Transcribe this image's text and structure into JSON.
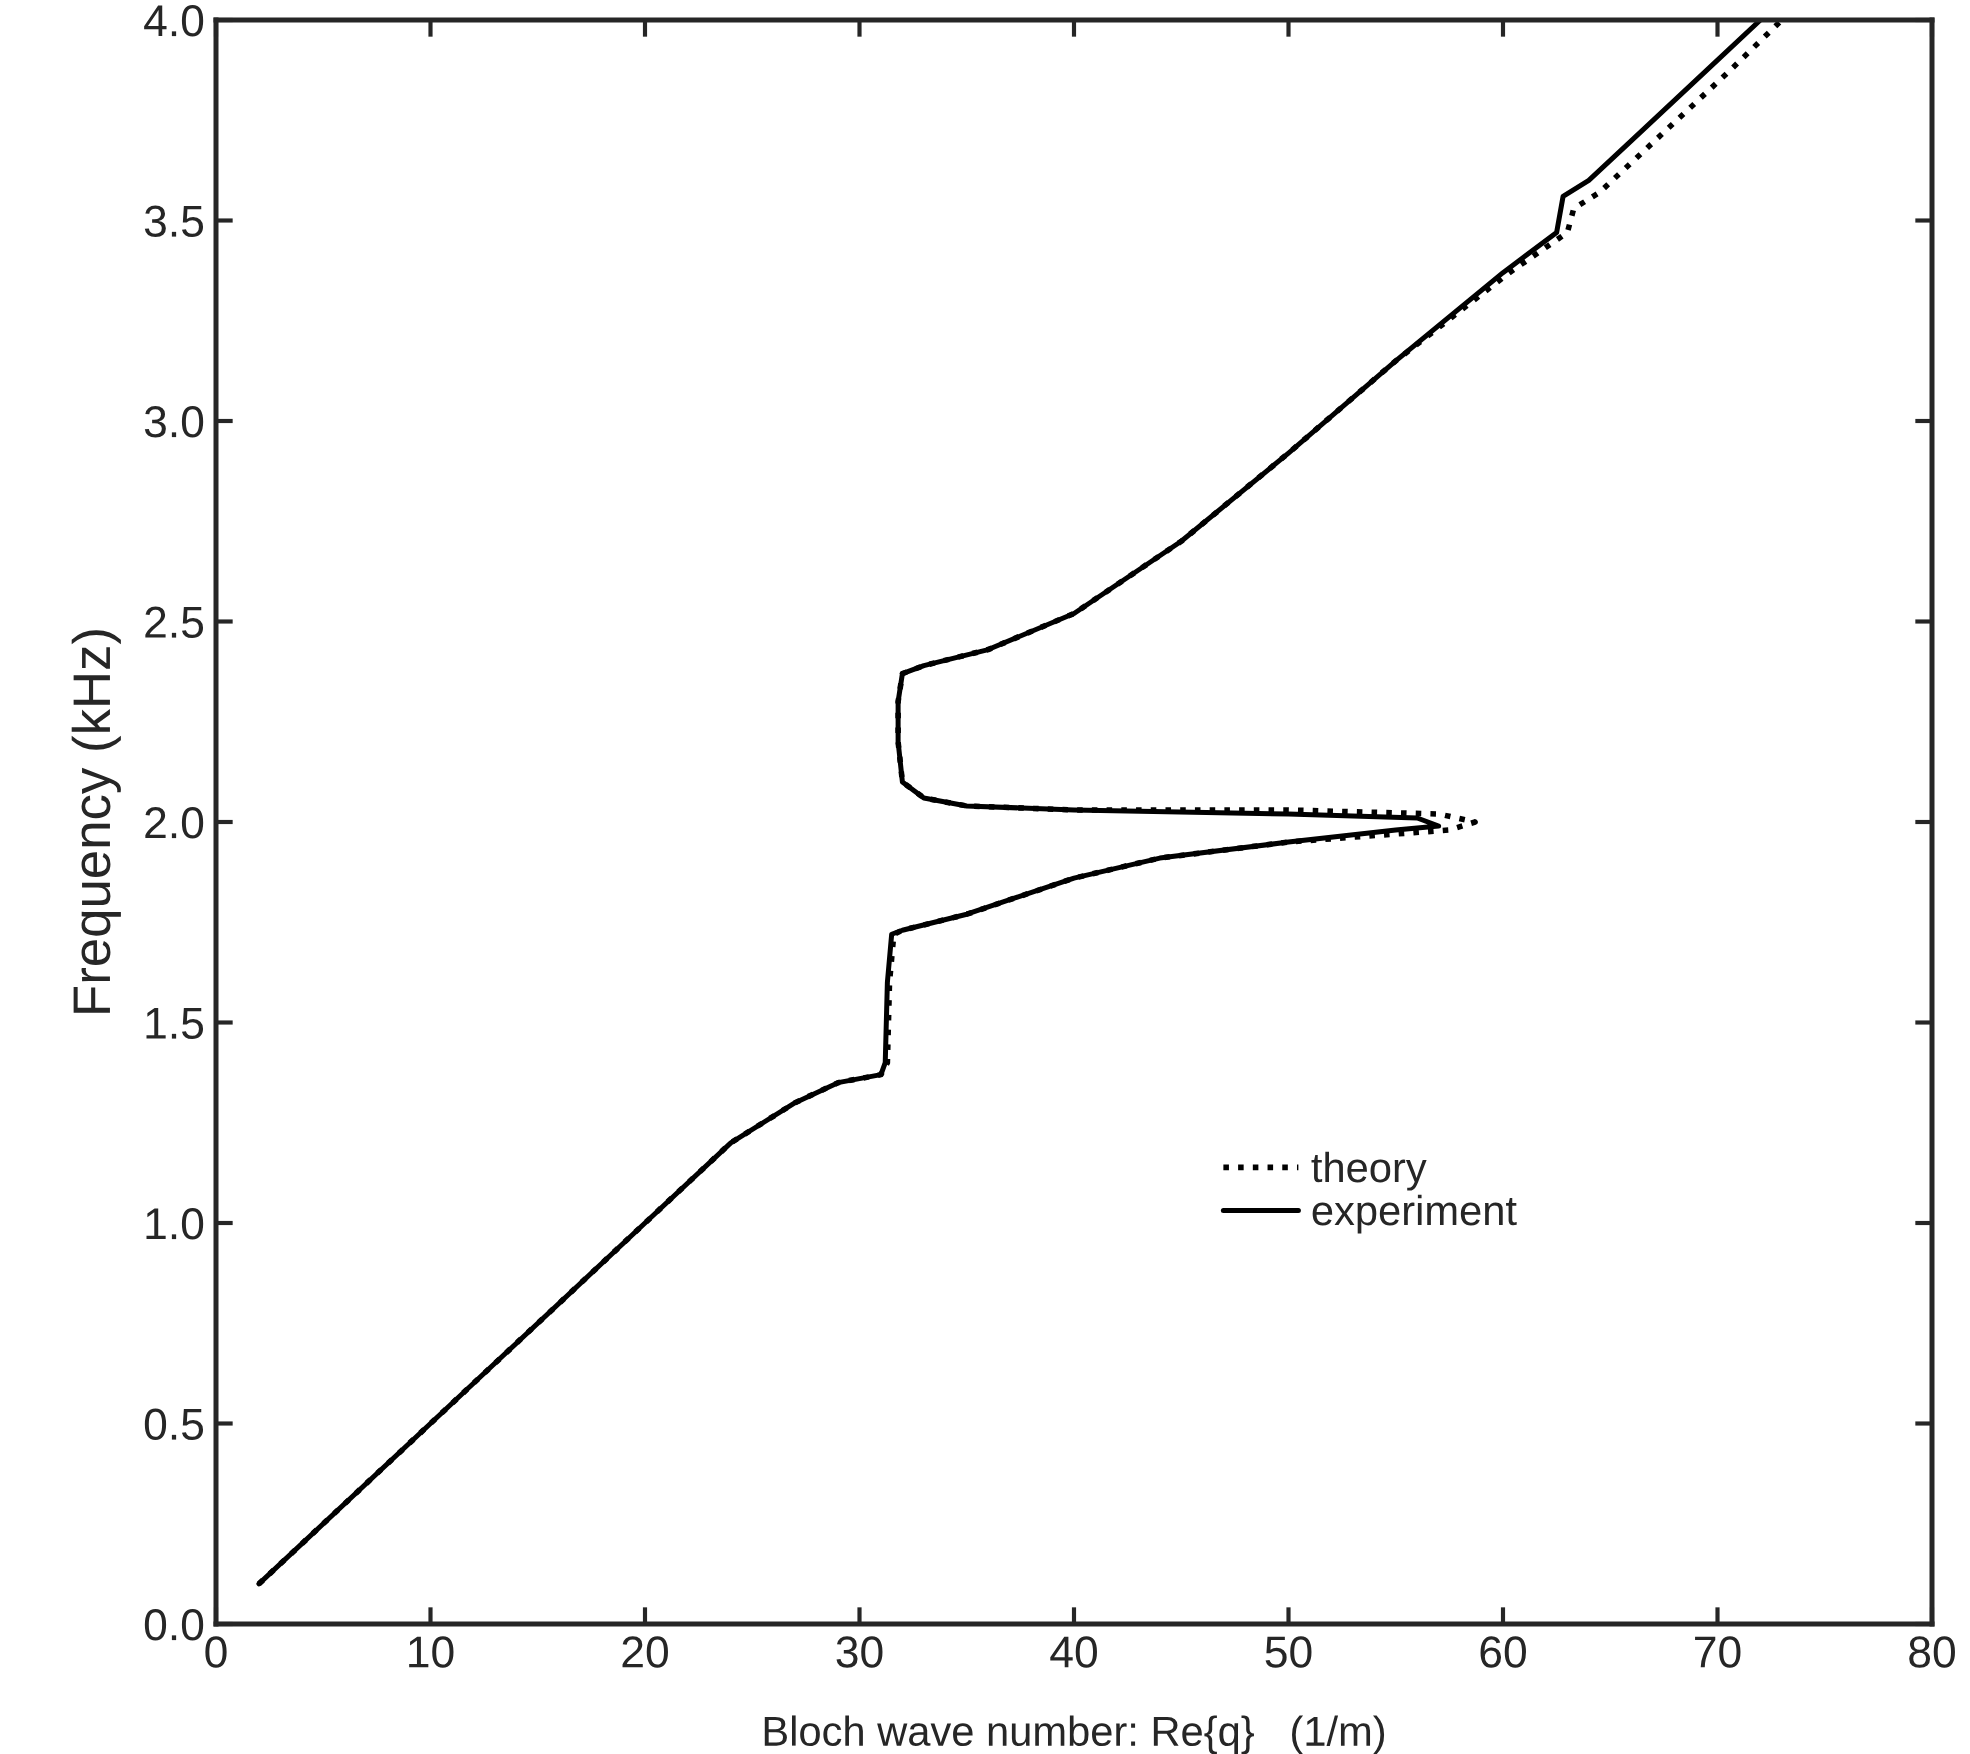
{
  "chart_data": {
    "type": "line",
    "xlabel": "Bloch wave number: Re{q}   (1/m)",
    "ylabel": "Frequency (kHz)",
    "xlim": [
      0,
      80
    ],
    "ylim": [
      0.0,
      4.0
    ],
    "xticks": [
      0,
      10,
      20,
      30,
      40,
      50,
      60,
      70,
      80
    ],
    "yticks": [
      {
        "value": 0,
        "label": "0.0"
      },
      {
        "value": 0.5,
        "label": "0.5"
      },
      {
        "value": 1,
        "label": "1.0"
      },
      {
        "value": 1.5,
        "label": "1.5"
      },
      {
        "value": 2,
        "label": "2.0"
      },
      {
        "value": 2.5,
        "label": "2.5"
      },
      {
        "value": 3,
        "label": "3.0"
      },
      {
        "value": 3.5,
        "label": "3.5"
      },
      {
        "value": 4,
        "label": "4.0"
      }
    ],
    "grid": false,
    "legend": "lower right",
    "series": [
      {
        "name": "theory",
        "color": "#000000",
        "line_style": "dotted",
        "x": [
          2,
          10,
          20,
          24,
          27,
          29,
          31,
          31.3,
          31.4,
          31.6,
          32,
          35,
          40,
          44,
          50,
          55,
          57.5,
          58.7,
          57,
          50,
          40,
          35,
          33,
          32,
          31.8,
          31.8,
          32,
          33,
          36,
          40,
          45,
          50,
          55,
          60.3,
          63,
          63.3,
          64.5,
          66.5,
          70.5,
          73
        ],
        "values": [
          0.1,
          0.5,
          1.0,
          1.2,
          1.3,
          1.35,
          1.37,
          1.4,
          1.6,
          1.72,
          1.73,
          1.77,
          1.86,
          1.91,
          1.95,
          1.97,
          1.98,
          2.0,
          2.02,
          2.03,
          2.03,
          2.04,
          2.06,
          2.1,
          2.2,
          2.3,
          2.37,
          2.39,
          2.43,
          2.52,
          2.7,
          2.92,
          3.15,
          3.37,
          3.47,
          3.53,
          3.57,
          3.67,
          3.87,
          4.0
        ]
      },
      {
        "name": "experiment",
        "color": "#000000",
        "line_style": "solid",
        "x": [
          2,
          10,
          20,
          24,
          27,
          29,
          31,
          31.2,
          31.3,
          31.5,
          32,
          35,
          40,
          44,
          50,
          55,
          57,
          56,
          50,
          40,
          35,
          33,
          32,
          31.8,
          31.8,
          32,
          33,
          36,
          40,
          45,
          50,
          55,
          60,
          62.5,
          62.8,
          64,
          66,
          70,
          72
        ],
        "values": [
          0.1,
          0.5,
          1.0,
          1.2,
          1.3,
          1.35,
          1.37,
          1.4,
          1.6,
          1.72,
          1.73,
          1.77,
          1.86,
          1.91,
          1.95,
          1.98,
          1.99,
          2.01,
          2.02,
          2.03,
          2.04,
          2.06,
          2.1,
          2.2,
          2.3,
          2.37,
          2.39,
          2.43,
          2.52,
          2.7,
          2.92,
          3.15,
          3.37,
          3.47,
          3.56,
          3.6,
          3.7,
          3.9,
          4.0
        ]
      }
    ]
  }
}
